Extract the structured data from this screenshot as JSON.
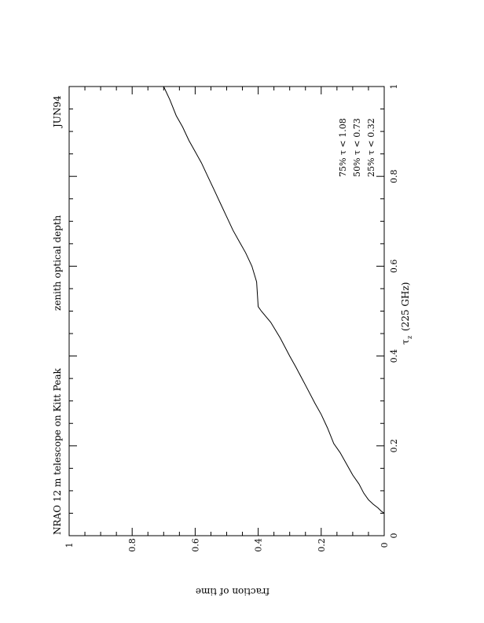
{
  "chart_data": {
    "type": "line",
    "orientation": "landscape page rotated 90 degrees clockwise",
    "title": "NRAO 12 m telescope on Kitt Peak",
    "subtitle": "zenith optical depth",
    "date_label": "JUN94",
    "xlabel": "fraction of time",
    "ylabel_main": "τ",
    "ylabel_sub": "z",
    "ylabel_rest": "(225 GHz)",
    "xlim": [
      0,
      1
    ],
    "ylim": [
      0,
      1
    ],
    "x_ticks": [
      "0",
      "0.2",
      "0.4",
      "0.6",
      "0.8",
      "1"
    ],
    "y_ticks": [
      "0",
      "0.2",
      "0.4",
      "0.6",
      "0.8",
      "1"
    ],
    "grid": false,
    "annotations": [
      "75%  τ  <  1.08",
      "50%  τ  <  0.73",
      "25%  τ  <  0.32"
    ],
    "series": [
      {
        "x": [
          0.0,
          0.01,
          0.02,
          0.035,
          0.05,
          0.065,
          0.08,
          0.1,
          0.12,
          0.14,
          0.16,
          0.18,
          0.2,
          0.22,
          0.25,
          0.28,
          0.3,
          0.33,
          0.36,
          0.39,
          0.4,
          0.405,
          0.42,
          0.44,
          0.46,
          0.48,
          0.5,
          0.52,
          0.54,
          0.56,
          0.58,
          0.6,
          0.62,
          0.64,
          0.66,
          0.68,
          0.7
        ],
        "y": [
          0.05,
          0.055,
          0.062,
          0.07,
          0.08,
          0.095,
          0.115,
          0.135,
          0.16,
          0.185,
          0.205,
          0.24,
          0.27,
          0.295,
          0.335,
          0.375,
          0.4,
          0.44,
          0.475,
          0.5,
          0.51,
          0.565,
          0.6,
          0.63,
          0.655,
          0.68,
          0.71,
          0.74,
          0.77,
          0.8,
          0.83,
          0.855,
          0.88,
          0.91,
          0.935,
          0.97,
          1.0
        ]
      }
    ]
  }
}
